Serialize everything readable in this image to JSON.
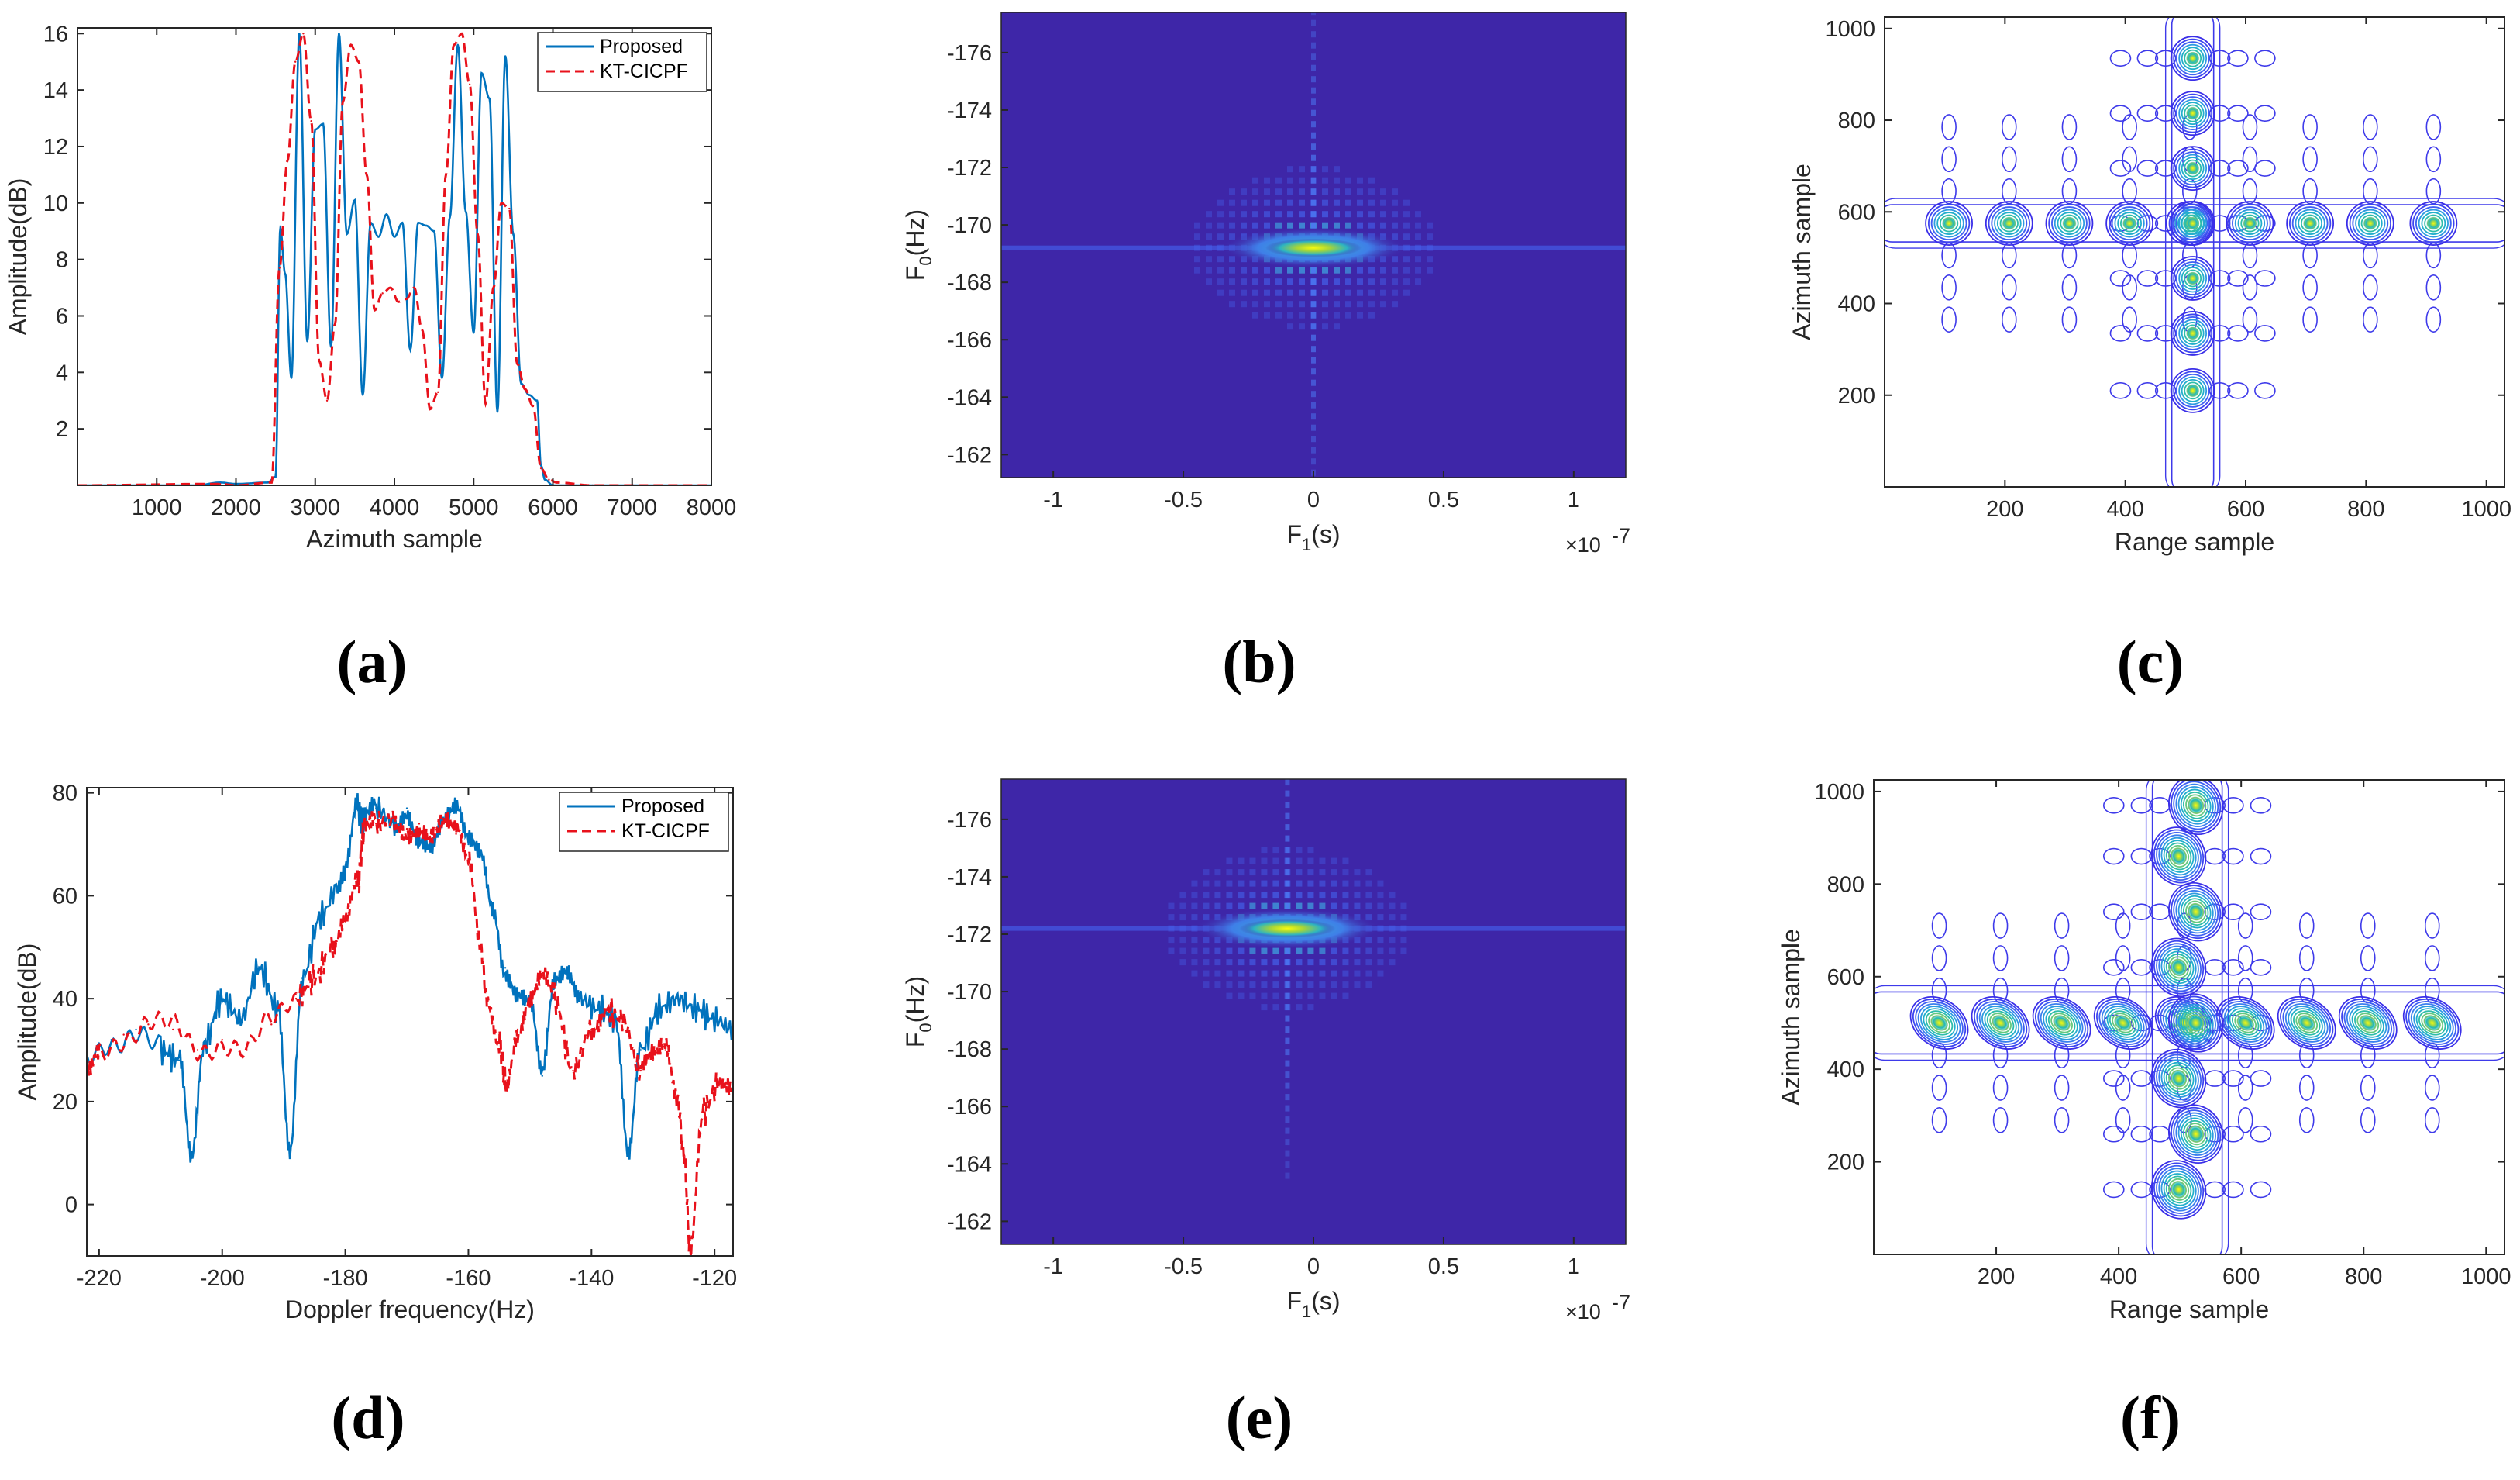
{
  "colors": {
    "proposed": "#0072BD",
    "kt": "#E8111B",
    "heat_bg": "#3E26A8",
    "heat_mid": "#2CA7D9",
    "heat_hi": "#F9FB0E"
  },
  "chart_data": [
    {
      "id": "a",
      "caption": "(a)",
      "type": "line",
      "xlabel": "Azimuth sample",
      "ylabel": "Amplitude(dB)",
      "xlim": [
        0,
        8000
      ],
      "ylim": [
        0,
        16.2
      ],
      "xticks": [
        1000,
        2000,
        3000,
        4000,
        5000,
        6000,
        7000,
        8000
      ],
      "xtick_labels": [
        "1000",
        "2000",
        "3000",
        "4000",
        "5000",
        "6000",
        "7000",
        "8000"
      ],
      "yticks": [
        2,
        4,
        6,
        8,
        10,
        12,
        14,
        16
      ],
      "ytick_labels": [
        "2",
        "4",
        "6",
        "8",
        "10",
        "12",
        "14",
        "16"
      ],
      "legend": [
        "Proposed",
        "KT-CICPF"
      ],
      "series": [
        {
          "name": "Proposed",
          "style": "solid",
          "x": [
            0,
            1500,
            1800,
            2000,
            2400,
            2500,
            2560,
            2620,
            2700,
            2800,
            2900,
            3000,
            3100,
            3200,
            3300,
            3400,
            3500,
            3600,
            3700,
            3800,
            3900,
            4000,
            4100,
            4200,
            4300,
            4400,
            4500,
            4600,
            4700,
            4800,
            4900,
            5000,
            5100,
            5200,
            5300,
            5400,
            5500,
            5600,
            5700,
            5800,
            5850,
            5900,
            6000,
            6300,
            8000
          ],
          "values": [
            0,
            0,
            0.1,
            0.05,
            0.1,
            0.3,
            9.1,
            7.5,
            3.8,
            16.0,
            5.1,
            12.6,
            12.8,
            4.9,
            16.0,
            8.9,
            10.1,
            3.2,
            9.3,
            8.8,
            9.6,
            8.8,
            9.3,
            4.8,
            9.3,
            9.2,
            9.0,
            3.8,
            9.5,
            15.6,
            9.7,
            5.4,
            14.6,
            13.7,
            2.6,
            15.2,
            8.9,
            3.6,
            3.2,
            3.0,
            0.7,
            0.2,
            0,
            0,
            0
          ]
        },
        {
          "name": "KT-CICPF",
          "style": "dashed",
          "x": [
            0,
            1800,
            2000,
            2450,
            2550,
            2650,
            2750,
            2850,
            2950,
            3050,
            3150,
            3250,
            3350,
            3450,
            3550,
            3650,
            3750,
            3850,
            3950,
            4050,
            4150,
            4250,
            4350,
            4450,
            4550,
            4650,
            4750,
            4850,
            4950,
            5050,
            5150,
            5250,
            5350,
            5450,
            5550,
            5650,
            5750,
            5850,
            5950,
            6050,
            6500,
            8000
          ],
          "values": [
            0,
            0.05,
            0,
            0.1,
            7.7,
            11.5,
            15.0,
            16.0,
            12.9,
            4.4,
            3.0,
            5.7,
            13.6,
            15.6,
            15.0,
            11.0,
            6.2,
            6.8,
            7.0,
            6.5,
            6.6,
            7.0,
            5.5,
            2.7,
            3.3,
            11.0,
            15.6,
            16.0,
            14.2,
            8.9,
            2.9,
            7.0,
            10.0,
            9.8,
            4.3,
            3.4,
            2.8,
            0.6,
            0.2,
            0.1,
            0,
            0
          ]
        }
      ]
    },
    {
      "id": "b",
      "caption": "(b)",
      "type": "heatmap",
      "xlabel_main": "F",
      "xlabel_sub": "1",
      "xlabel_unit": "(s)",
      "ylabel_main": "F",
      "ylabel_sub": "0",
      "ylabel_unit": "(Hz)",
      "xlim": [
        -1.2,
        1.2
      ],
      "ylim": [
        -161.2,
        -177.4
      ],
      "xticks": [
        -1,
        -0.5,
        0,
        0.5,
        1
      ],
      "xtick_labels": [
        "-1",
        "-0.5",
        "0",
        "0.5",
        "1"
      ],
      "yticks": [
        -176,
        -174,
        -172,
        -170,
        -168,
        -166,
        -164,
        -162
      ],
      "ytick_labels": [
        "-176",
        "-174",
        "-172",
        "-170",
        "-168",
        "-166",
        "-164",
        "-162"
      ],
      "x_exponent_base": "×10",
      "x_exponent_power": "-7",
      "peak": {
        "x": 0.0,
        "y": -169.2
      }
    },
    {
      "id": "c",
      "caption": "(c)",
      "type": "contour",
      "xlabel": "Range sample",
      "ylabel": "Azimuth sample",
      "xlim": [
        0,
        1030
      ],
      "ylim": [
        0,
        1025
      ],
      "xticks": [
        200,
        400,
        600,
        800,
        1000
      ],
      "xtick_labels": [
        "200",
        "400",
        "600",
        "800",
        "1000"
      ],
      "yticks": [
        200,
        400,
        600,
        800,
        1000
      ],
      "ytick_labels": [
        "200",
        "400",
        "600",
        "800",
        "1000"
      ],
      "horizontal_targets": {
        "x": [
          107,
          207,
          307,
          407,
          507,
          607,
          707,
          807,
          912
        ],
        "y": 575
      },
      "vertical_targets": {
        "x": 512,
        "y": [
          210,
          335,
          455,
          575,
          695,
          815,
          935
        ]
      }
    },
    {
      "id": "d",
      "caption": "(d)",
      "type": "line",
      "xlabel": "Doppler frequency(Hz)",
      "ylabel": "Amplitude(dB)",
      "xlim": [
        -222,
        -117
      ],
      "ylim": [
        -10,
        81
      ],
      "xticks": [
        -220,
        -200,
        -180,
        -160,
        -140,
        -120
      ],
      "xtick_labels": [
        "-220",
        "-200",
        "-180",
        "-160",
        "-140",
        "-120"
      ],
      "yticks": [
        0,
        20,
        40,
        60,
        80
      ],
      "ytick_labels": [
        "0",
        "20",
        "40",
        "60",
        "80"
      ],
      "legend": [
        "Proposed",
        "KT-CICPF"
      ],
      "series": [
        {
          "name": "Proposed",
          "style": "solid",
          "x": [
            -222,
            -218,
            -214,
            -210,
            -207,
            -205,
            -203,
            -200,
            -197,
            -194,
            -191,
            -189,
            -187,
            -184,
            -181,
            -180,
            -178,
            -177,
            -175,
            -172,
            -170,
            -168,
            -166,
            -164,
            -162,
            -160,
            -158,
            -156,
            -154,
            -152,
            -150,
            -148,
            -146,
            -144,
            -142,
            -139,
            -136,
            -134,
            -132,
            -129,
            -126,
            -123,
            -120,
            -117
          ],
          "values": [
            28,
            32,
            34,
            30,
            28,
            9,
            31,
            40,
            36,
            46,
            38,
            10,
            44,
            56,
            62,
            65,
            77,
            74,
            77,
            74,
            77,
            72,
            70,
            74,
            76,
            70,
            68,
            58,
            46,
            42,
            40,
            25,
            42,
            44,
            40,
            38,
            36,
            10,
            30,
            38,
            40,
            38,
            36,
            34
          ]
        },
        {
          "name": "KT-CICPF",
          "style": "dashed",
          "x": [
            -222,
            -220,
            -216,
            -212,
            -208,
            -204,
            -200,
            -196,
            -192,
            -188,
            -185,
            -182,
            -180,
            -178,
            -177,
            -175,
            -172,
            -170,
            -168,
            -166,
            -164,
            -162,
            -160,
            -158,
            -157,
            -155,
            -154,
            -152,
            -150,
            -148,
            -146,
            -143,
            -140,
            -138,
            -135,
            -132,
            -130,
            -128,
            -126,
            -125,
            -124,
            -122,
            -119,
            -117
          ],
          "values": [
            25,
            30,
            33,
            35,
            34,
            30,
            32,
            30,
            35,
            40,
            44,
            50,
            55,
            62,
            72,
            74,
            75,
            73,
            74,
            72,
            74,
            72,
            66,
            50,
            40,
            32,
            24,
            34,
            40,
            44,
            40,
            26,
            34,
            38,
            36,
            26,
            28,
            30,
            20,
            10,
            -8,
            18,
            24,
            22
          ]
        }
      ]
    },
    {
      "id": "e",
      "caption": "(e)",
      "type": "heatmap",
      "xlabel_main": "F",
      "xlabel_sub": "1",
      "xlabel_unit": "(s)",
      "ylabel_main": "F",
      "ylabel_sub": "0",
      "ylabel_unit": "(Hz)",
      "xlim": [
        -1.2,
        1.2
      ],
      "ylim": [
        -161.2,
        -177.4
      ],
      "xticks": [
        -1,
        -0.5,
        0,
        0.5,
        1
      ],
      "xtick_labels": [
        "-1",
        "-0.5",
        "0",
        "0.5",
        "1"
      ],
      "yticks": [
        -176,
        -174,
        -172,
        -170,
        -168,
        -166,
        -164,
        -162
      ],
      "ytick_labels": [
        "-176",
        "-174",
        "-172",
        "-170",
        "-168",
        "-166",
        "-164",
        "-162"
      ],
      "x_exponent_base": "×10",
      "x_exponent_power": "-7",
      "peak": {
        "x": -0.1,
        "y": -172.2
      }
    },
    {
      "id": "f",
      "caption": "(f)",
      "type": "contour",
      "xlabel": "Range sample",
      "ylabel": "Azimuth sample",
      "xlim": [
        0,
        1030
      ],
      "ylim": [
        0,
        1025
      ],
      "xticks": [
        200,
        400,
        600,
        800,
        1000
      ],
      "xtick_labels": [
        "200",
        "400",
        "600",
        "800",
        "1000"
      ],
      "yticks": [
        200,
        400,
        600,
        800,
        1000
      ],
      "ytick_labels": [
        "200",
        "400",
        "600",
        "800",
        "1000"
      ],
      "horizontal_targets": {
        "x": [
          107,
          207,
          307,
          407,
          507,
          607,
          707,
          807,
          912
        ],
        "y": 500
      },
      "vertical_targets": {
        "x": 512,
        "y": [
          140,
          260,
          380,
          500,
          620,
          740,
          860,
          970
        ]
      }
    }
  ]
}
